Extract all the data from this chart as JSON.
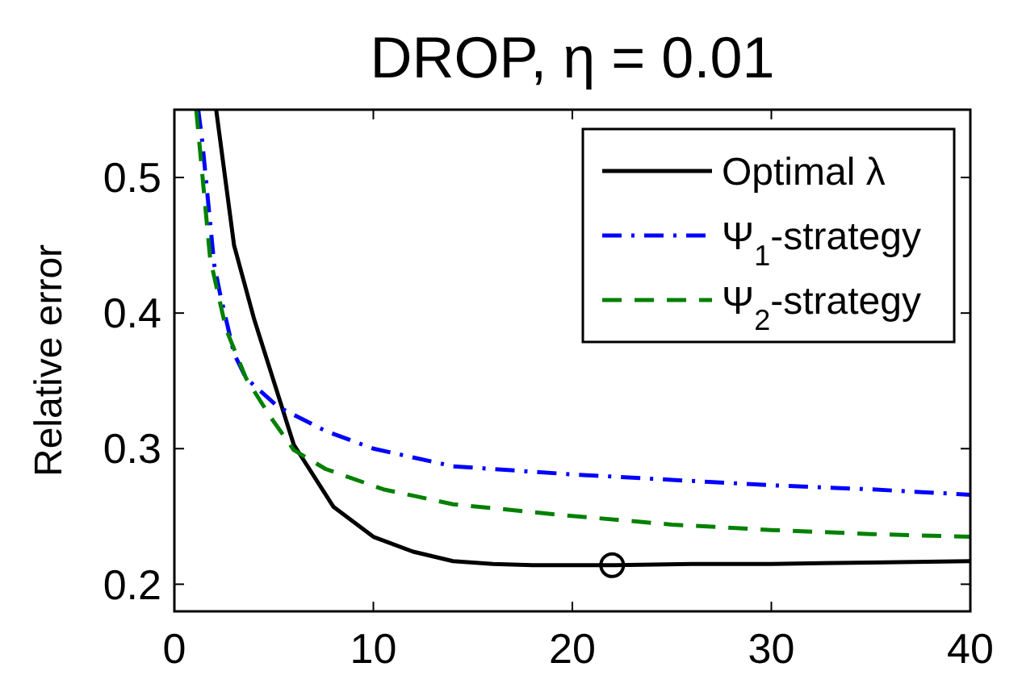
{
  "chart_data": {
    "type": "line",
    "title": "DROP, η = 0.01",
    "ylabel": "Relative error",
    "xlim": [
      0,
      40
    ],
    "ylim": [
      0.18,
      0.55
    ],
    "xticks": [
      0,
      10,
      20,
      30,
      40
    ],
    "yticks": [
      0.2,
      0.3,
      0.4,
      0.5
    ],
    "grid": false,
    "legend": "top right",
    "marker": "none",
    "series": [
      {
        "name": "Optimal λ",
        "color": "#000000",
        "line_style": "solid",
        "x": [
          2.1,
          3,
          4,
          6,
          8,
          10,
          12,
          14,
          16,
          18,
          22,
          26,
          30,
          35,
          40
        ],
        "values": [
          0.55,
          0.45,
          0.396,
          0.303,
          0.257,
          0.235,
          0.224,
          0.217,
          0.215,
          0.214,
          0.214,
          0.215,
          0.215,
          0.216,
          0.217
        ]
      },
      {
        "name": "Ψ$_{1}$-strategy",
        "color": "#0000ff",
        "line_style": "dashdot",
        "x": [
          1.2,
          1.4,
          2,
          2.3,
          3,
          3.6,
          5.2,
          7.6,
          10,
          14,
          20,
          25,
          30,
          35,
          40
        ],
        "values": [
          0.55,
          0.527,
          0.436,
          0.414,
          0.37,
          0.352,
          0.331,
          0.313,
          0.3,
          0.287,
          0.281,
          0.277,
          0.273,
          0.27,
          0.266
        ]
      },
      {
        "name": "Ψ$_{2}$-strategy",
        "color": "#008000",
        "line_style": "dashed",
        "x": [
          1.1,
          1.8,
          2.6,
          3.6,
          4.8,
          6,
          7.6,
          10.5,
          14,
          19.5,
          25,
          30,
          35,
          40
        ],
        "values": [
          0.55,
          0.44,
          0.388,
          0.352,
          0.324,
          0.299,
          0.285,
          0.27,
          0.259,
          0.251,
          0.244,
          0.24,
          0.237,
          0.235
        ]
      },
      {
        "type": "scatter",
        "color": "#000000",
        "marker": "circle",
        "x": [
          22
        ],
        "values": [
          0.214
        ]
      }
    ]
  }
}
